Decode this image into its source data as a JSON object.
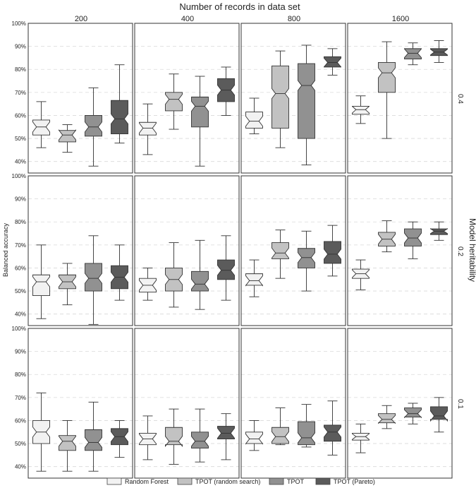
{
  "chart_data": {
    "type": "box",
    "title": "Number of records in data set",
    "ylabel": "Balanced accuracy",
    "row_label": "Model heritability",
    "column_labels": [
      "200",
      "400",
      "800",
      "1600"
    ],
    "row_labels": [
      "0.4",
      "0.2",
      "0.1"
    ],
    "y_ticks": [
      "40%",
      "50%",
      "60%",
      "70%",
      "80%",
      "90%",
      "100%"
    ],
    "ylim": [
      0.35,
      1.0
    ],
    "grid": "dashed-horizontal",
    "legend_position": "bottom",
    "series": [
      {
        "name": "Random Forest",
        "color": "#f2f2f2"
      },
      {
        "name": "TPOT (random search)",
        "color": "#c2c2c2"
      },
      {
        "name": "TPOT",
        "color": "#919191"
      },
      {
        "name": "TPOT (Pareto)",
        "color": "#5b5b5b"
      }
    ],
    "panels": [
      {
        "row": "0.4",
        "col": "200",
        "boxes": [
          {
            "min": 0.46,
            "q1": 0.515,
            "median": 0.55,
            "q3": 0.58,
            "max": 0.66
          },
          {
            "min": 0.44,
            "q1": 0.485,
            "median": 0.515,
            "q3": 0.535,
            "max": 0.56
          },
          {
            "min": 0.38,
            "q1": 0.51,
            "median": 0.55,
            "q3": 0.6,
            "max": 0.72
          },
          {
            "min": 0.48,
            "q1": 0.52,
            "median": 0.585,
            "q3": 0.665,
            "max": 0.82
          }
        ]
      },
      {
        "row": "0.4",
        "col": "400",
        "boxes": [
          {
            "min": 0.43,
            "q1": 0.515,
            "median": 0.545,
            "q3": 0.57,
            "max": 0.65
          },
          {
            "min": 0.54,
            "q1": 0.62,
            "median": 0.67,
            "q3": 0.7,
            "max": 0.78
          },
          {
            "min": 0.38,
            "q1": 0.55,
            "median": 0.64,
            "q3": 0.68,
            "max": 0.77
          },
          {
            "min": 0.6,
            "q1": 0.66,
            "median": 0.71,
            "q3": 0.76,
            "max": 0.81
          }
        ]
      },
      {
        "row": "0.4",
        "col": "800",
        "boxes": [
          {
            "min": 0.52,
            "q1": 0.545,
            "median": 0.575,
            "q3": 0.615,
            "max": 0.675
          },
          {
            "min": 0.46,
            "q1": 0.545,
            "median": 0.695,
            "q3": 0.815,
            "max": 0.88
          },
          {
            "min": 0.385,
            "q1": 0.5,
            "median": 0.73,
            "q3": 0.825,
            "max": 0.905
          },
          {
            "min": 0.775,
            "q1": 0.81,
            "median": 0.83,
            "q3": 0.855,
            "max": 0.89
          }
        ]
      },
      {
        "row": "0.4",
        "col": "1600",
        "boxes": [
          {
            "min": 0.565,
            "q1": 0.605,
            "median": 0.625,
            "q3": 0.64,
            "max": 0.685
          },
          {
            "min": 0.5,
            "q1": 0.7,
            "median": 0.785,
            "q3": 0.83,
            "max": 0.92
          },
          {
            "min": 0.82,
            "q1": 0.845,
            "median": 0.87,
            "q3": 0.89,
            "max": 0.915
          },
          {
            "min": 0.83,
            "q1": 0.86,
            "median": 0.875,
            "q3": 0.89,
            "max": 0.925
          }
        ]
      },
      {
        "row": "0.2",
        "col": "200",
        "boxes": [
          {
            "min": 0.38,
            "q1": 0.48,
            "median": 0.54,
            "q3": 0.57,
            "max": 0.7
          },
          {
            "min": 0.44,
            "q1": 0.51,
            "median": 0.54,
            "q3": 0.57,
            "max": 0.62
          },
          {
            "min": 0.355,
            "q1": 0.5,
            "median": 0.555,
            "q3": 0.62,
            "max": 0.74
          },
          {
            "min": 0.46,
            "q1": 0.51,
            "median": 0.56,
            "q3": 0.61,
            "max": 0.7
          }
        ]
      },
      {
        "row": "0.2",
        "col": "400",
        "boxes": [
          {
            "min": 0.46,
            "q1": 0.495,
            "median": 0.525,
            "q3": 0.555,
            "max": 0.6
          },
          {
            "min": 0.43,
            "q1": 0.5,
            "median": 0.55,
            "q3": 0.6,
            "max": 0.71
          },
          {
            "min": 0.42,
            "q1": 0.5,
            "median": 0.53,
            "q3": 0.585,
            "max": 0.72
          },
          {
            "min": 0.46,
            "q1": 0.55,
            "median": 0.59,
            "q3": 0.635,
            "max": 0.74
          }
        ]
      },
      {
        "row": "0.2",
        "col": "800",
        "boxes": [
          {
            "min": 0.475,
            "q1": 0.525,
            "median": 0.545,
            "q3": 0.575,
            "max": 0.635
          },
          {
            "min": 0.555,
            "q1": 0.64,
            "median": 0.665,
            "q3": 0.71,
            "max": 0.765
          },
          {
            "min": 0.5,
            "q1": 0.6,
            "median": 0.645,
            "q3": 0.685,
            "max": 0.76
          },
          {
            "min": 0.565,
            "q1": 0.62,
            "median": 0.66,
            "q3": 0.715,
            "max": 0.785
          }
        ]
      },
      {
        "row": "0.2",
        "col": "1600",
        "boxes": [
          {
            "min": 0.505,
            "q1": 0.555,
            "median": 0.575,
            "q3": 0.595,
            "max": 0.635
          },
          {
            "min": 0.67,
            "q1": 0.695,
            "median": 0.725,
            "q3": 0.755,
            "max": 0.805
          },
          {
            "min": 0.64,
            "q1": 0.695,
            "median": 0.73,
            "q3": 0.77,
            "max": 0.8
          },
          {
            "min": 0.72,
            "q1": 0.745,
            "median": 0.76,
            "q3": 0.77,
            "max": 0.8
          }
        ]
      },
      {
        "row": "0.1",
        "col": "200",
        "boxes": [
          {
            "min": 0.38,
            "q1": 0.5,
            "median": 0.55,
            "q3": 0.6,
            "max": 0.72
          },
          {
            "min": 0.38,
            "q1": 0.47,
            "median": 0.51,
            "q3": 0.535,
            "max": 0.6
          },
          {
            "min": 0.38,
            "q1": 0.47,
            "median": 0.505,
            "q3": 0.56,
            "max": 0.68
          },
          {
            "min": 0.44,
            "q1": 0.495,
            "median": 0.53,
            "q3": 0.565,
            "max": 0.6
          }
        ]
      },
      {
        "row": "0.1",
        "col": "400",
        "boxes": [
          {
            "min": 0.43,
            "q1": 0.495,
            "median": 0.52,
            "q3": 0.545,
            "max": 0.62
          },
          {
            "min": 0.41,
            "q1": 0.495,
            "median": 0.51,
            "q3": 0.57,
            "max": 0.65
          },
          {
            "min": 0.42,
            "q1": 0.48,
            "median": 0.51,
            "q3": 0.55,
            "max": 0.65
          },
          {
            "min": 0.43,
            "q1": 0.52,
            "median": 0.545,
            "q3": 0.575,
            "max": 0.63
          }
        ]
      },
      {
        "row": "0.1",
        "col": "800",
        "boxes": [
          {
            "min": 0.47,
            "q1": 0.5,
            "median": 0.52,
            "q3": 0.55,
            "max": 0.6
          },
          {
            "min": 0.495,
            "q1": 0.5,
            "median": 0.53,
            "q3": 0.57,
            "max": 0.655
          },
          {
            "min": 0.485,
            "q1": 0.495,
            "median": 0.525,
            "q3": 0.595,
            "max": 0.67
          },
          {
            "min": 0.45,
            "q1": 0.51,
            "median": 0.55,
            "q3": 0.58,
            "max": 0.685
          }
        ]
      },
      {
        "row": "0.1",
        "col": "1600",
        "boxes": [
          {
            "min": 0.46,
            "q1": 0.515,
            "median": 0.53,
            "q3": 0.545,
            "max": 0.585
          },
          {
            "min": 0.565,
            "q1": 0.59,
            "median": 0.605,
            "q3": 0.63,
            "max": 0.665
          },
          {
            "min": 0.585,
            "q1": 0.615,
            "median": 0.63,
            "q3": 0.655,
            "max": 0.675
          },
          {
            "min": 0.55,
            "q1": 0.605,
            "median": 0.62,
            "q3": 0.66,
            "max": 0.7
          }
        ]
      }
    ]
  }
}
